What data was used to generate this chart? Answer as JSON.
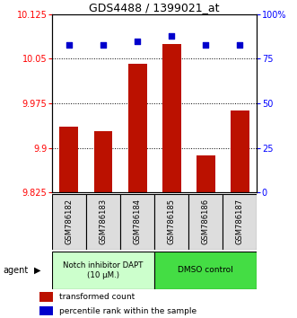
{
  "title": "GDS4488 / 1399021_at",
  "samples": [
    "GSM786182",
    "GSM786183",
    "GSM786184",
    "GSM786185",
    "GSM786186",
    "GSM786187"
  ],
  "bar_values": [
    9.935,
    9.928,
    10.042,
    10.075,
    9.888,
    9.963
  ],
  "percentile_values": [
    83,
    83,
    85,
    88,
    83,
    83
  ],
  "bar_color": "#bb1100",
  "dot_color": "#0000cc",
  "ymin": 9.825,
  "ymax": 10.125,
  "ylim_right": [
    0,
    100
  ],
  "yticks_left": [
    9.825,
    9.9,
    9.975,
    10.05,
    10.125
  ],
  "ytick_labels_left": [
    "9.825",
    "9.9",
    "9.975",
    "10.05",
    "10.125"
  ],
  "yticks_right": [
    0,
    25,
    50,
    75,
    100
  ],
  "ytick_labels_right": [
    "0",
    "25",
    "50",
    "75",
    "100%"
  ],
  "hlines": [
    9.9,
    9.975,
    10.05
  ],
  "group1_label": "Notch inhibitor DAPT\n(10 μM.)",
  "group2_label": "DMSO control",
  "group1_color": "#ccffcc",
  "group2_color": "#44dd44",
  "legend_bar_label": "transformed count",
  "legend_dot_label": "percentile rank within the sample",
  "agent_label": "agent",
  "bar_width": 0.55
}
